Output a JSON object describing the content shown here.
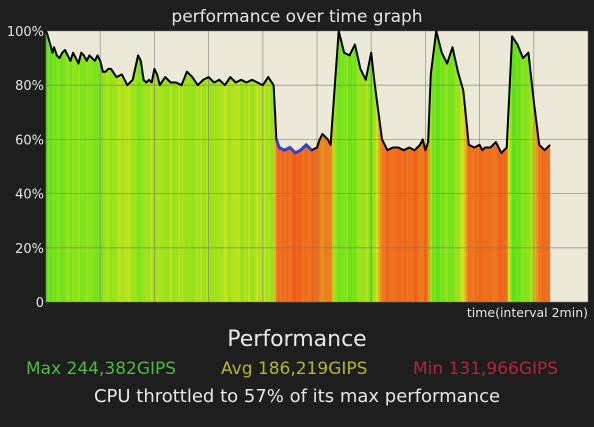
{
  "chart_data": {
    "type": "area",
    "title": "performance over time graph",
    "xlabel": "time(interval 2min)",
    "ylabel": "",
    "ylim": [
      0,
      100
    ],
    "y_ticks": [
      "100%",
      "80%",
      "60%",
      "40%",
      "20%",
      "0"
    ],
    "y_tick_values": [
      100,
      80,
      60,
      40,
      20,
      0
    ],
    "grid": true,
    "x_range": [
      0,
      10
    ],
    "series": [
      {
        "values_x": [
          0,
          0.02,
          0.05,
          0.08,
          0.12,
          0.15,
          0.2,
          0.25,
          0.3,
          0.35,
          0.4,
          0.45,
          0.5,
          0.55,
          0.6,
          0.65,
          0.7,
          0.75,
          0.8,
          0.85,
          0.9,
          0.95,
          1.0,
          1.05,
          1.1,
          1.15,
          1.2,
          1.3,
          1.4,
          1.5,
          1.6,
          1.7,
          1.75,
          1.8,
          1.85,
          1.9,
          1.95,
          2.0,
          2.05,
          2.1,
          2.2,
          2.3,
          2.4,
          2.5,
          2.6,
          2.7,
          2.8,
          2.9,
          3.0,
          3.1,
          3.2,
          3.3,
          3.4,
          3.5,
          3.6,
          3.7,
          3.8,
          3.9,
          4.0,
          4.1,
          4.2,
          4.25,
          4.3,
          4.4,
          4.5,
          4.6,
          4.7,
          4.8,
          4.9,
          5.0,
          5.05,
          5.1,
          5.2,
          5.25,
          5.3,
          5.4,
          5.5,
          5.6,
          5.7,
          5.8,
          5.9,
          6.0,
          6.05,
          6.1,
          6.2,
          6.3,
          6.4,
          6.5,
          6.6,
          6.7,
          6.8,
          6.9,
          6.95,
          7.0,
          7.05,
          7.1,
          7.2,
          7.3,
          7.4,
          7.5,
          7.6,
          7.7,
          7.8,
          7.9,
          8.0,
          8.05,
          8.1,
          8.2,
          8.3,
          8.4,
          8.5,
          8.6,
          8.7,
          8.8,
          8.9,
          9.0,
          9.1,
          9.2,
          9.3
        ],
        "values": [
          100,
          99,
          97,
          95,
          92,
          94,
          91,
          90,
          92,
          93,
          91,
          89,
          92,
          90,
          88,
          92,
          91,
          89,
          91,
          90,
          89,
          91,
          89,
          85,
          85,
          86,
          86,
          83,
          84,
          80,
          82,
          91,
          89,
          82,
          81,
          82,
          81,
          86,
          84,
          80,
          83,
          81,
          81,
          80,
          85,
          83,
          80,
          82,
          83,
          81,
          82,
          80,
          83,
          81,
          82,
          81,
          82,
          81,
          80,
          83,
          80,
          60,
          57,
          56,
          57,
          55,
          56,
          58,
          56,
          57,
          60,
          62,
          60,
          58,
          72,
          100,
          92,
          91,
          95,
          86,
          82,
          92,
          83,
          75,
          60,
          56,
          57,
          57,
          56,
          57,
          56,
          58,
          60,
          56,
          59,
          84,
          100,
          92,
          88,
          94,
          85,
          78,
          58,
          57,
          58,
          56,
          57,
          57,
          59,
          55,
          57,
          98,
          95,
          90,
          92,
          74,
          58,
          56,
          58
        ]
      }
    ],
    "colors": {
      "line": "#000000",
      "plot_background": "#ece9d8",
      "grid": "#777777",
      "high_fill": "#57e21c",
      "mid_fill": "#d8e41e",
      "low_fill": "#f25a1e",
      "blue_segment": "#3340c8"
    }
  },
  "summary": {
    "title": "Performance",
    "max_text": "Max 244,382GIPS",
    "avg_text": "Avg 186,219GIPS",
    "min_text": "Min 131,966GIPS",
    "max_color": "#4dbb3d",
    "avg_color": "#b5b52c",
    "min_color": "#b0263a",
    "throttle_text": "CPU throttled to 57% of its max performance"
  }
}
